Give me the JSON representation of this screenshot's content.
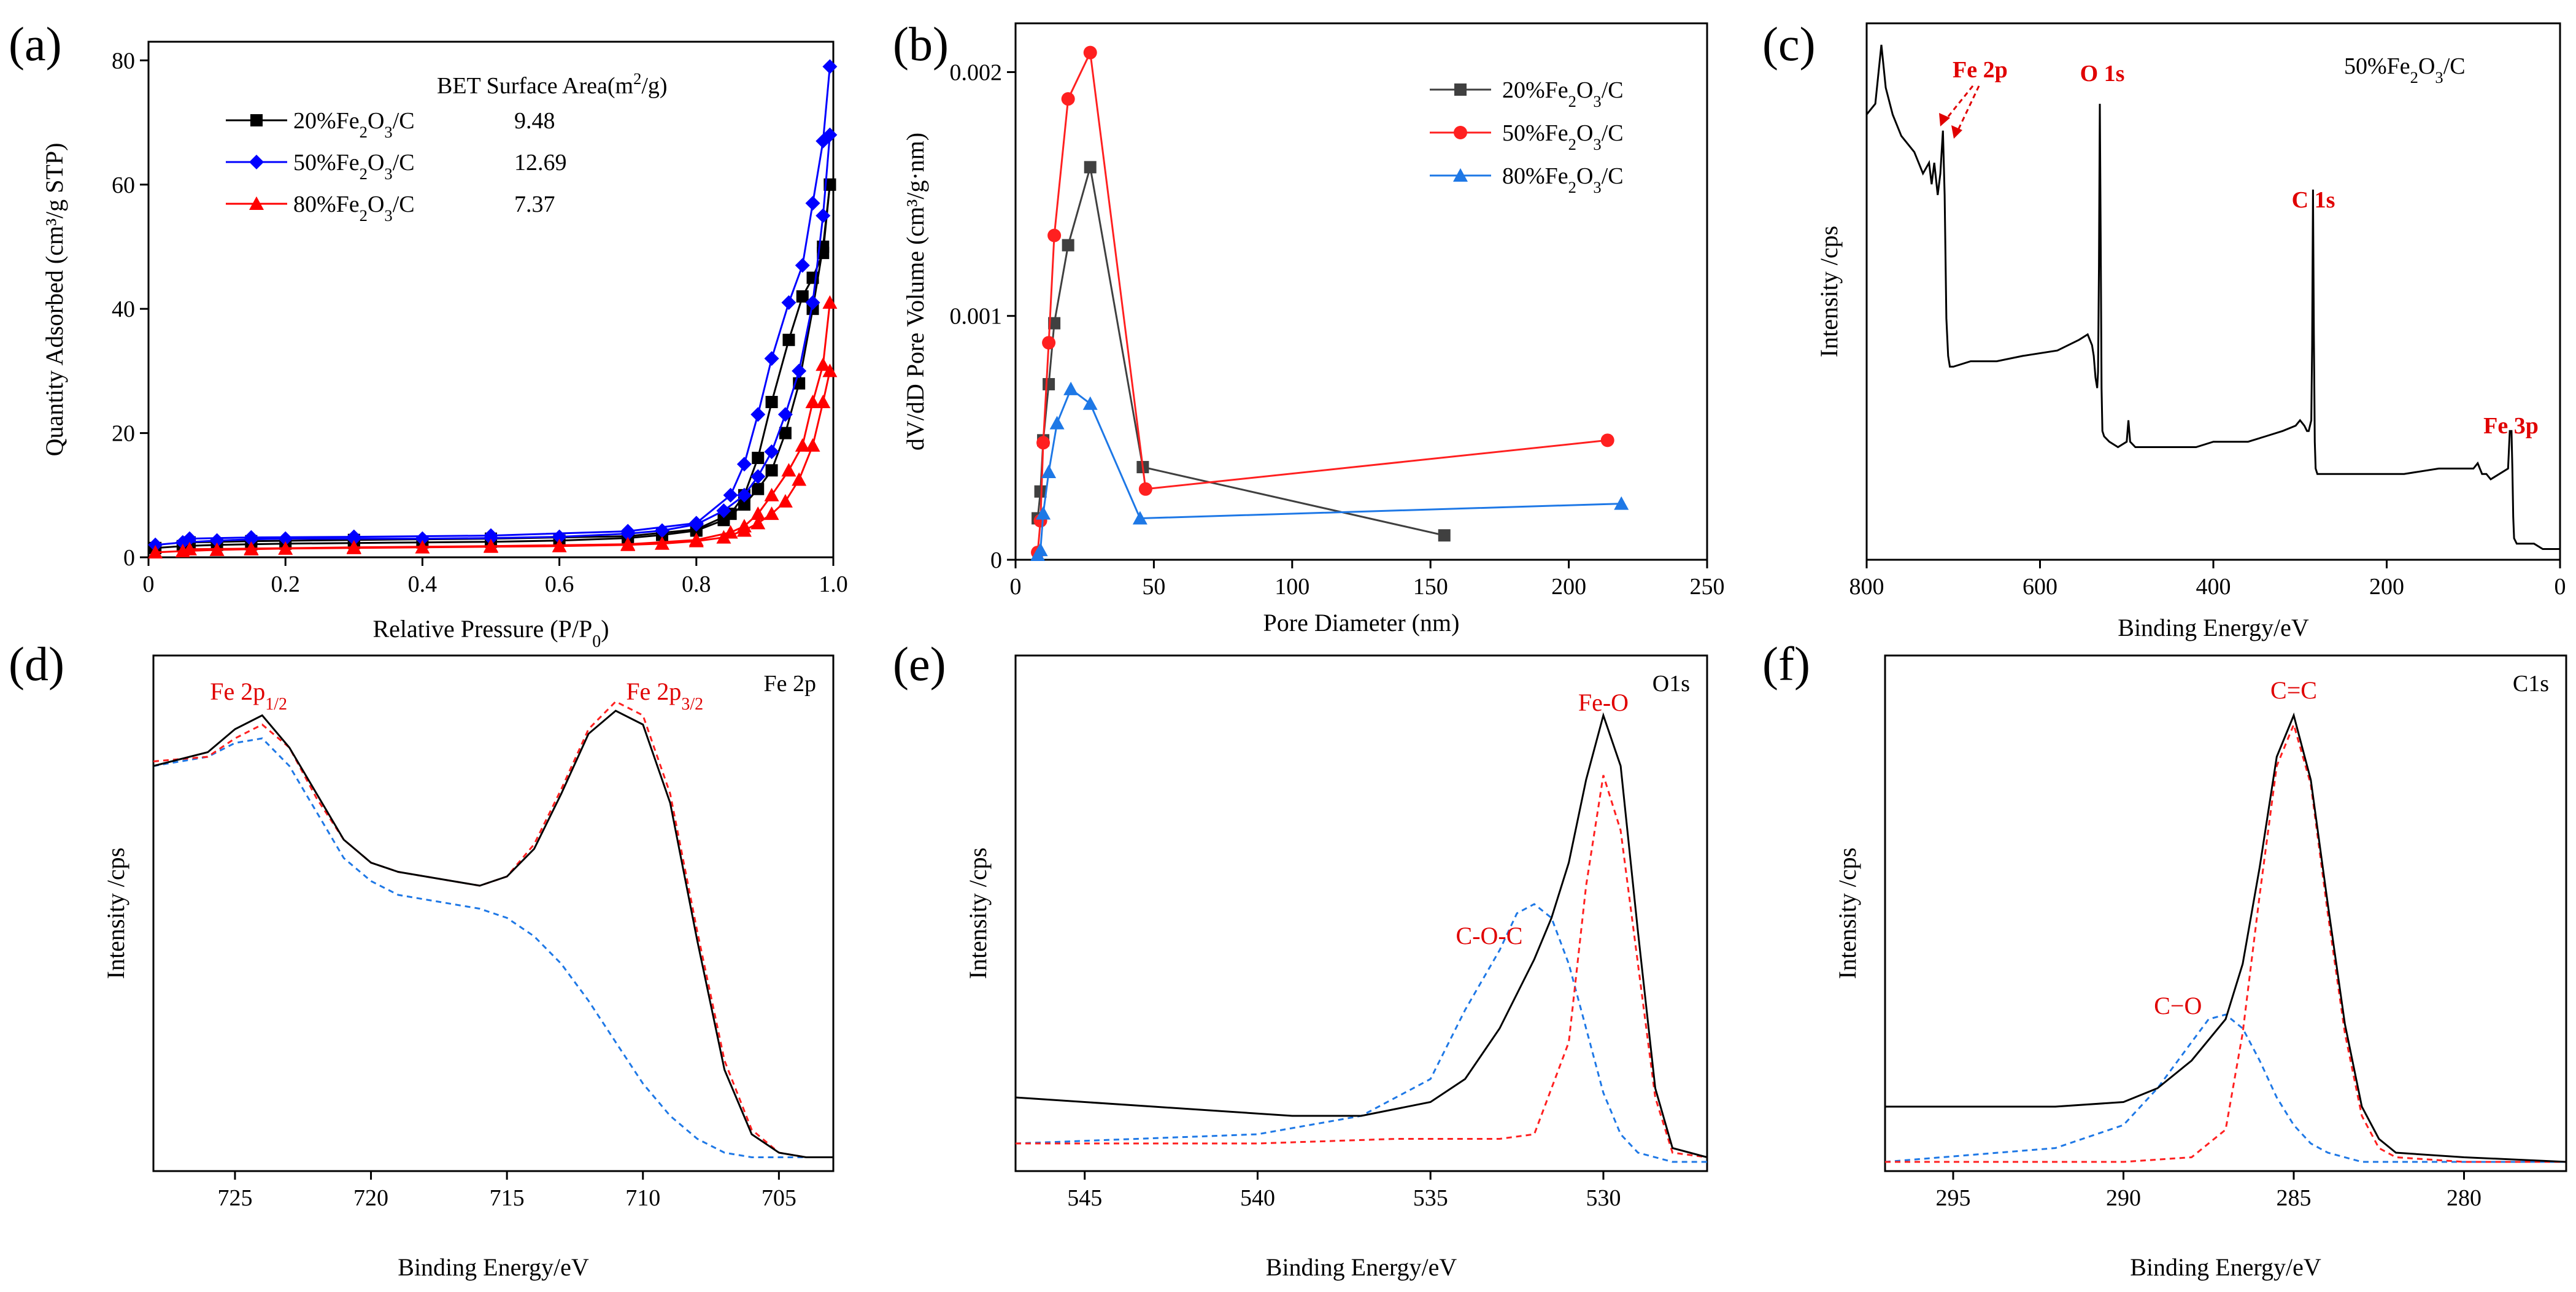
{
  "chart_data": [
    {
      "panel": "(a)",
      "type": "line",
      "xlabel": "Relative Pressure (P/P",
      "xlabel_sub": "0",
      "xlabel_end": ")",
      "ylabel": "Quantity Adsorbed (cm³/g STP)",
      "xlim": [
        0,
        1.0
      ],
      "ylim": [
        0,
        83
      ],
      "xticks": [
        0,
        0.2,
        0.4,
        0.6,
        0.8,
        1.0
      ],
      "xtick_labels": [
        "0",
        "0.2",
        "0.4",
        "0.6",
        "0.8",
        "1.0"
      ],
      "yticks": [
        0,
        20,
        40,
        60,
        80
      ],
      "legend_title": "BET Surface Area(m²/g)",
      "series": [
        {
          "name": "20%Fe₂O₃/C",
          "bet": "9.48",
          "color": "#000000",
          "marker": "square",
          "x_ads": [
            0.01,
            0.05,
            0.1,
            0.15,
            0.2,
            0.3,
            0.4,
            0.5,
            0.6,
            0.7,
            0.75,
            0.8,
            0.84,
            0.87,
            0.89,
            0.91,
            0.93,
            0.95,
            0.97,
            0.985,
            0.995
          ],
          "y_ads": [
            1.5,
            1.8,
            2.0,
            2.1,
            2.2,
            2.3,
            2.4,
            2.5,
            2.7,
            3.1,
            3.6,
            4.3,
            6.0,
            8.5,
            11,
            14,
            20,
            28,
            40,
            50,
            60
          ],
          "x_des": [
            0.995,
            0.985,
            0.97,
            0.955,
            0.935,
            0.91,
            0.89,
            0.87,
            0.85,
            0.8,
            0.7,
            0.5,
            0.3,
            0.15,
            0.06
          ],
          "y_des": [
            60,
            49,
            45,
            42,
            35,
            25,
            16,
            10,
            7,
            4.5,
            3.4,
            3.0,
            2.8,
            2.6,
            2.4
          ]
        },
        {
          "name": "50%Fe₂O₃/C",
          "bet": "12.69",
          "color": "#0000ff",
          "marker": "diamond",
          "x_ads": [
            0.01,
            0.05,
            0.1,
            0.15,
            0.2,
            0.3,
            0.4,
            0.5,
            0.6,
            0.7,
            0.75,
            0.8,
            0.84,
            0.87,
            0.89,
            0.91,
            0.93,
            0.95,
            0.97,
            0.985,
            0.995
          ],
          "y_ads": [
            2.0,
            2.4,
            2.7,
            2.9,
            3.0,
            3.0,
            3.0,
            3.1,
            3.3,
            3.8,
            4.3,
            5.3,
            7.5,
            10,
            13,
            17,
            23,
            30,
            41,
            55,
            68
          ],
          "x_des": [
            0.995,
            0.985,
            0.97,
            0.955,
            0.935,
            0.91,
            0.89,
            0.87,
            0.85,
            0.8,
            0.7,
            0.5,
            0.3,
            0.15,
            0.06
          ],
          "y_des": [
            79,
            67,
            57,
            47,
            41,
            32,
            23,
            15,
            10,
            5.5,
            4.2,
            3.5,
            3.3,
            3.2,
            3.0
          ]
        },
        {
          "name": "80%Fe₂O₃/C",
          "bet": "7.37",
          "color": "#ff0000",
          "marker": "triangle",
          "x_ads": [
            0.01,
            0.05,
            0.1,
            0.15,
            0.2,
            0.3,
            0.4,
            0.5,
            0.6,
            0.7,
            0.75,
            0.8,
            0.84,
            0.87,
            0.89,
            0.91,
            0.93,
            0.95,
            0.97,
            0.985,
            0.995
          ],
          "y_ads": [
            0.8,
            1.0,
            1.2,
            1.3,
            1.4,
            1.5,
            1.6,
            1.7,
            1.8,
            2.0,
            2.2,
            2.6,
            3.2,
            4.3,
            5.5,
            7,
            9,
            12.5,
            18,
            25,
            30
          ],
          "x_des": [
            0.995,
            0.985,
            0.97,
            0.955,
            0.935,
            0.91,
            0.89,
            0.87,
            0.85,
            0.8,
            0.7,
            0.5,
            0.3,
            0.15,
            0.06
          ],
          "y_des": [
            41,
            31,
            25,
            18,
            14,
            10,
            7,
            5,
            4,
            2.8,
            2.1,
            1.8,
            1.6,
            1.4,
            1.3
          ]
        }
      ]
    },
    {
      "panel": "(b)",
      "type": "line",
      "xlabel": "Pore Diameter (nm)",
      "ylabel": "dV/dD Pore Volume (cm³/g·nm)",
      "xlim": [
        0,
        250
      ],
      "ylim": [
        0,
        0.0022
      ],
      "xticks": [
        0,
        50,
        100,
        150,
        200,
        250
      ],
      "yticks": [
        0,
        0.001,
        0.002
      ],
      "ytick_labels": [
        "0",
        "0.001",
        "0.002"
      ],
      "series": [
        {
          "name": "20%Fe₂O₃/C",
          "color": "#404040",
          "marker": "square",
          "x": [
            8,
            9,
            10,
            12,
            14,
            19,
            27,
            46,
            155
          ],
          "y": [
            0.00017,
            0.00028,
            0.00049,
            0.00072,
            0.00097,
            0.00129,
            0.00161,
            0.00038,
            0.0001
          ]
        },
        {
          "name": "50%Fe₂O₃/C",
          "color": "#ff2020",
          "marker": "circle",
          "x": [
            8,
            9,
            10,
            12,
            14,
            19,
            27,
            47,
            214
          ],
          "y": [
            3e-05,
            0.00016,
            0.00048,
            0.00089,
            0.00133,
            0.00189,
            0.00208,
            0.00029,
            0.00049
          ]
        },
        {
          "name": "80%Fe₂O₃/C",
          "color": "#1e78e6",
          "marker": "triangle",
          "x": [
            8,
            9,
            10,
            12,
            15,
            20,
            27,
            45,
            219
          ],
          "y": [
            2e-05,
            4e-05,
            0.00019,
            0.00036,
            0.00056,
            0.0007,
            0.00064,
            0.00017,
            0.00023
          ]
        }
      ]
    },
    {
      "panel": "(c)",
      "type": "line",
      "xlabel": "Binding Energy/eV",
      "ylabel": "Intensity /cps",
      "sample": "50%Fe₂O₃/C",
      "xlim": [
        800,
        0
      ],
      "xticks": [
        800,
        600,
        400,
        200,
        0
      ],
      "annotations": [
        "Fe 2p",
        "O 1s",
        "C 1s",
        "Fe 3p"
      ],
      "spectrum": {
        "x": [
          800,
          790,
          783,
          778,
          770,
          760,
          745,
          735,
          728,
          725,
          722,
          718,
          715,
          712,
          710,
          708,
          706,
          704,
          700,
          680,
          650,
          620,
          580,
          555,
          545,
          540,
          538,
          536,
          534,
          533,
          532,
          531,
          530,
          529,
          528,
          526,
          520,
          510,
          500,
          498,
          496,
          490,
          470,
          450,
          420,
          400,
          380,
          360,
          340,
          320,
          305,
          300,
          295,
          292,
          290,
          287,
          286,
          285,
          284,
          283,
          282,
          280,
          270,
          250,
          220,
          180,
          140,
          100,
          95,
          90,
          85,
          80,
          70,
          60,
          58,
          56,
          55,
          54,
          53,
          50,
          40,
          30,
          20,
          10,
          0
        ],
        "y": [
          0.83,
          0.85,
          0.96,
          0.88,
          0.83,
          0.79,
          0.76,
          0.72,
          0.74,
          0.7,
          0.74,
          0.68,
          0.72,
          0.8,
          0.68,
          0.45,
          0.38,
          0.36,
          0.36,
          0.37,
          0.37,
          0.38,
          0.39,
          0.41,
          0.42,
          0.4,
          0.38,
          0.34,
          0.32,
          0.35,
          0.55,
          0.85,
          0.6,
          0.32,
          0.24,
          0.23,
          0.22,
          0.21,
          0.22,
          0.26,
          0.22,
          0.21,
          0.21,
          0.21,
          0.21,
          0.22,
          0.22,
          0.22,
          0.23,
          0.24,
          0.25,
          0.26,
          0.25,
          0.24,
          0.24,
          0.26,
          0.4,
          0.69,
          0.42,
          0.22,
          0.17,
          0.16,
          0.16,
          0.16,
          0.16,
          0.16,
          0.17,
          0.17,
          0.18,
          0.16,
          0.16,
          0.15,
          0.16,
          0.17,
          0.24,
          0.24,
          0.17,
          0.08,
          0.04,
          0.03,
          0.03,
          0.03,
          0.02,
          0.02,
          0.02
        ]
      }
    },
    {
      "panel": "(d)",
      "type": "line",
      "xlabel": "Binding Energy/eV",
      "ylabel": "Intensity /cps",
      "corner_label": "Fe 2p",
      "xlim": [
        728,
        703
      ],
      "xticks": [
        725,
        720,
        715,
        710,
        705
      ],
      "annotations": [
        {
          "text": "Fe 2p",
          "sub": "1/2"
        },
        {
          "text": "Fe 2p",
          "sub": "3/2"
        }
      ],
      "raw": {
        "x": [
          728,
          726,
          725,
          724,
          723,
          722,
          721,
          720,
          719,
          718,
          717,
          716,
          715,
          714,
          713,
          712,
          711,
          710,
          709,
          708,
          707,
          706,
          705,
          704,
          703
        ],
        "y": [
          0.88,
          0.91,
          0.96,
          0.99,
          0.92,
          0.82,
          0.72,
          0.67,
          0.65,
          0.64,
          0.63,
          0.62,
          0.64,
          0.7,
          0.82,
          0.95,
          1.0,
          0.97,
          0.8,
          0.5,
          0.22,
          0.08,
          0.04,
          0.03,
          0.03
        ]
      },
      "red_fit": {
        "x": [
          728,
          726,
          725,
          724,
          723,
          722,
          721,
          720,
          719,
          718,
          717,
          716,
          715,
          714,
          713,
          712,
          711,
          710,
          709,
          708,
          707,
          706,
          705,
          704,
          703
        ],
        "y": [
          0.89,
          0.9,
          0.94,
          0.97,
          0.92,
          0.81,
          0.72,
          0.67,
          0.65,
          0.64,
          0.63,
          0.62,
          0.64,
          0.71,
          0.83,
          0.96,
          1.02,
          0.99,
          0.82,
          0.52,
          0.24,
          0.09,
          0.04,
          0.03,
          0.03
        ]
      },
      "blue_fit": {
        "x": [
          728,
          726,
          725,
          724,
          723,
          722,
          721,
          720,
          719,
          718,
          717,
          716,
          715,
          714,
          713,
          712,
          711,
          710,
          709,
          708,
          707,
          706,
          705,
          704,
          703
        ],
        "y": [
          0.88,
          0.9,
          0.93,
          0.94,
          0.88,
          0.78,
          0.68,
          0.63,
          0.6,
          0.59,
          0.58,
          0.57,
          0.55,
          0.51,
          0.45,
          0.37,
          0.28,
          0.19,
          0.12,
          0.07,
          0.04,
          0.03,
          0.03,
          0.03,
          0.03
        ]
      }
    },
    {
      "panel": "(e)",
      "type": "line",
      "xlabel": "Binding Energy/eV",
      "ylabel": "Intensity /cps",
      "corner_label": "O1s",
      "xlim": [
        547,
        527
      ],
      "xticks": [
        545,
        540,
        535,
        530
      ],
      "annotations": [
        "Fe-O",
        "C-O-C"
      ],
      "raw": {
        "x": [
          547,
          545,
          543,
          541,
          539,
          537,
          535,
          534,
          533,
          532,
          531.5,
          531,
          530.5,
          530,
          529.5,
          529,
          528.5,
          528,
          527
        ],
        "y": [
          0.16,
          0.15,
          0.14,
          0.13,
          0.12,
          0.12,
          0.15,
          0.2,
          0.31,
          0.46,
          0.55,
          0.67,
          0.85,
          0.99,
          0.88,
          0.52,
          0.18,
          0.05,
          0.03
        ]
      },
      "red_fit": {
        "x": [
          547,
          540,
          536,
          534,
          533,
          532,
          531,
          530.5,
          530,
          529.5,
          529,
          528.5,
          528,
          527
        ],
        "y": [
          0.06,
          0.06,
          0.07,
          0.07,
          0.07,
          0.08,
          0.28,
          0.62,
          0.86,
          0.74,
          0.45,
          0.16,
          0.04,
          0.03
        ]
      },
      "blue_fit": {
        "x": [
          547,
          540,
          537,
          535,
          534,
          533,
          532.5,
          532,
          531.5,
          531,
          530.5,
          530,
          529.5,
          529,
          528,
          527
        ],
        "y": [
          0.06,
          0.08,
          0.12,
          0.2,
          0.35,
          0.48,
          0.56,
          0.58,
          0.55,
          0.45,
          0.31,
          0.17,
          0.08,
          0.04,
          0.02,
          0.02
        ]
      }
    },
    {
      "panel": "(f)",
      "type": "line",
      "xlabel": "Binding Energy/eV",
      "ylabel": "Intensity /cps",
      "corner_label": "C1s",
      "xlim": [
        297,
        277
      ],
      "xticks": [
        295,
        290,
        285,
        280
      ],
      "annotations": [
        "C=C",
        "C−O"
      ],
      "raw": {
        "x": [
          297,
          294,
          292,
          290,
          289,
          288,
          287,
          286.5,
          286,
          285.5,
          285,
          284.5,
          284,
          283.5,
          283,
          282.5,
          282,
          280,
          277
        ],
        "y": [
          0.14,
          0.14,
          0.14,
          0.15,
          0.18,
          0.24,
          0.33,
          0.45,
          0.66,
          0.9,
          0.99,
          0.85,
          0.58,
          0.32,
          0.14,
          0.07,
          0.04,
          0.03,
          0.02
        ]
      },
      "red_fit": {
        "x": [
          297,
          290,
          288,
          287,
          286.5,
          286,
          285.5,
          285,
          284.5,
          284,
          283.5,
          283,
          282.5,
          282,
          280,
          277
        ],
        "y": [
          0.02,
          0.02,
          0.03,
          0.09,
          0.3,
          0.6,
          0.88,
          0.97,
          0.84,
          0.56,
          0.3,
          0.12,
          0.05,
          0.03,
          0.02,
          0.02
        ]
      },
      "blue_fit": {
        "x": [
          297,
          292,
          290,
          289,
          288,
          287.5,
          287,
          286.5,
          286,
          285.5,
          285,
          284.5,
          284,
          283,
          282,
          277
        ],
        "y": [
          0.02,
          0.05,
          0.1,
          0.18,
          0.28,
          0.33,
          0.34,
          0.31,
          0.24,
          0.16,
          0.1,
          0.06,
          0.04,
          0.02,
          0.02,
          0.02
        ]
      }
    }
  ]
}
